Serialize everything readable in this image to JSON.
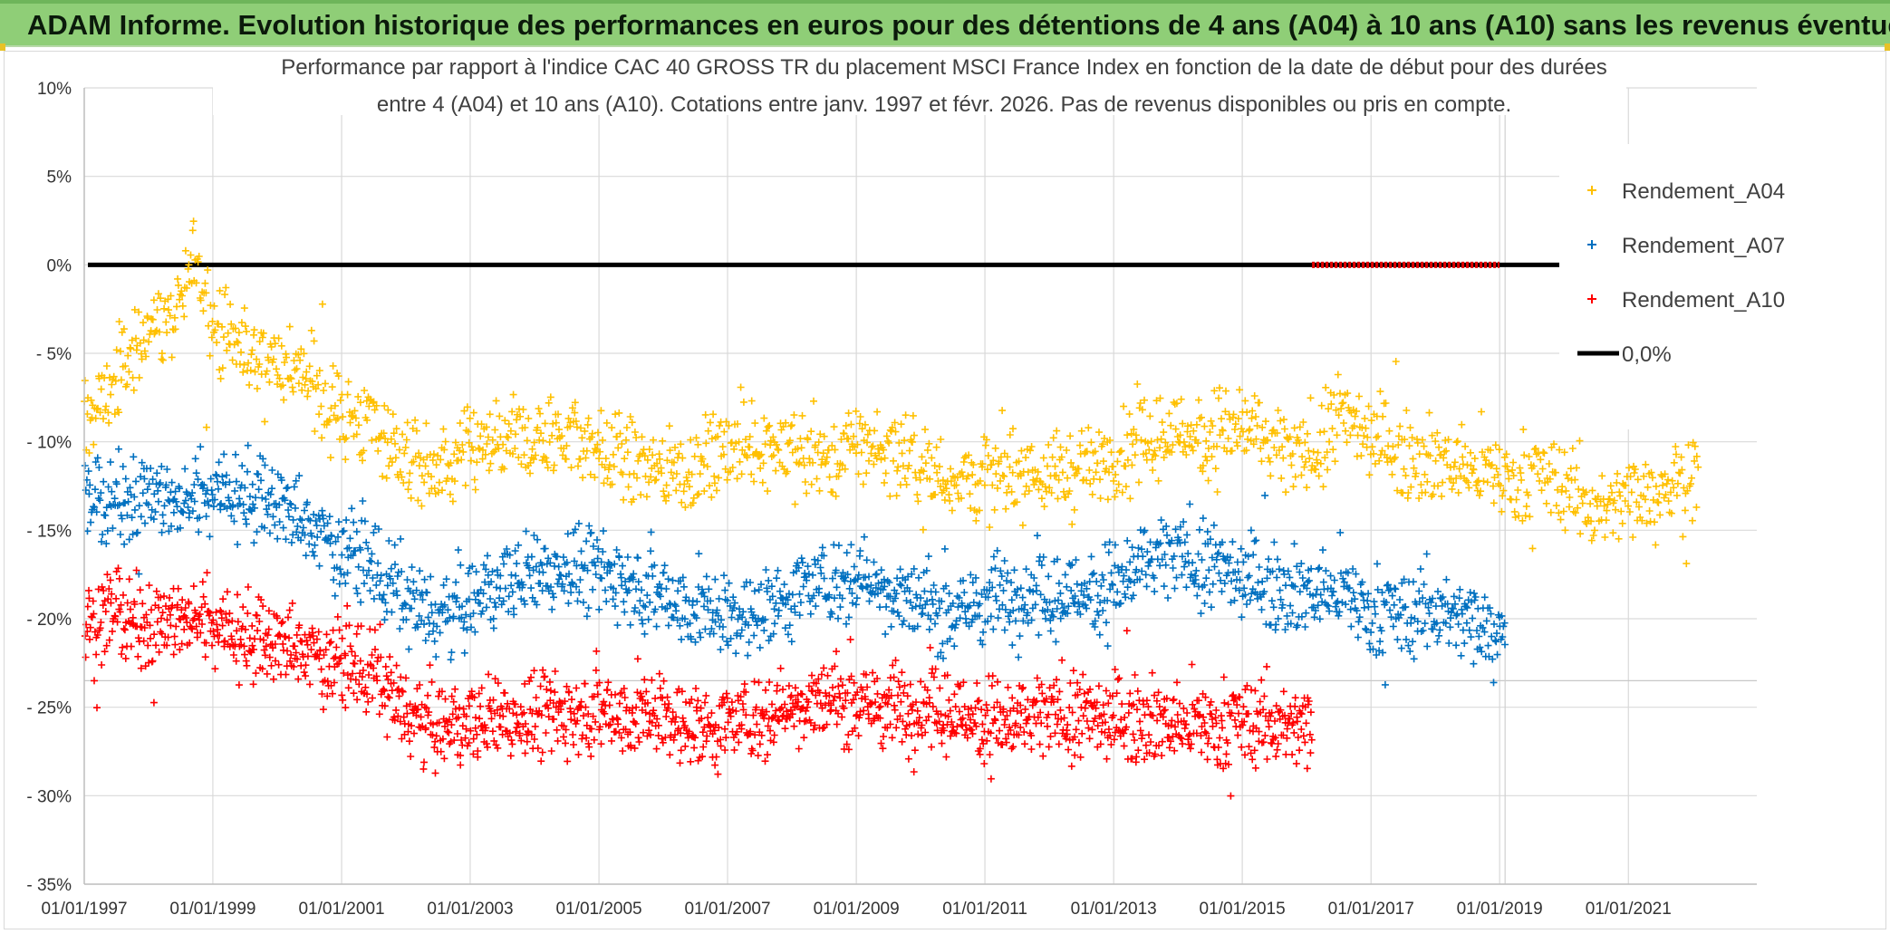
{
  "banner": {
    "title": "ADAM Informe. Evolution historique des performances en euros pour des détentions de 4 ans (A04) à 10 ans (A10) sans les revenus éventuels",
    "background": "#8fce77"
  },
  "chart_data": {
    "type": "scatter",
    "title_lines": [
      "Performance par rapport à l'indice CAC 40 GROSS TR  du placement MSCI France Index en fonction de la date de début pour des durées",
      "entre 4 (A04) et 10 ans (A10). Cotations entre janv. 1997 et févr. 2026. Pas de revenus disponibles ou pris en compte."
    ],
    "x_range": [
      "1997-01-01",
      "2022-12-31"
    ],
    "x_ticks": [
      "01/01/1997",
      "01/01/1999",
      "01/01/2001",
      "01/01/2003",
      "01/01/2005",
      "01/01/2007",
      "01/01/2009",
      "01/01/2011",
      "01/01/2013",
      "01/01/2015",
      "01/01/2017",
      "01/01/2019",
      "01/01/2021"
    ],
    "y_range": [
      -35,
      10
    ],
    "y_ticks": [
      "10%",
      "5%",
      "0%",
      "- 5%",
      "- 10%",
      "- 15%",
      "- 20%",
      "- 25%",
      "- 30%",
      "- 35%"
    ],
    "y_tick_values": [
      10,
      5,
      0,
      -5,
      -10,
      -15,
      -20,
      -25,
      -30,
      -35
    ],
    "grid": true,
    "legend_position": "top-right",
    "series": [
      {
        "name": "Rendement_A04",
        "color": "#ffc000",
        "marker": "+",
        "x_start": "1997-01-01",
        "x_end": "2022-02-01",
        "points": [
          [
            "1997-01-01",
            -9
          ],
          [
            "1997-07-01",
            -6.5
          ],
          [
            "1998-01-01",
            -3.5
          ],
          [
            "1998-07-01",
            -2.5
          ],
          [
            "1998-10-01",
            0.5
          ],
          [
            "1999-01-01",
            -3
          ],
          [
            "1999-07-01",
            -5
          ],
          [
            "2000-01-01",
            -5.5
          ],
          [
            "2000-07-01",
            -6.5
          ],
          [
            "2001-01-01",
            -8.5
          ],
          [
            "2001-07-01",
            -9
          ],
          [
            "2002-01-01",
            -11
          ],
          [
            "2002-07-01",
            -12
          ],
          [
            "2003-01-01",
            -10.5
          ],
          [
            "2003-07-01",
            -10
          ],
          [
            "2004-01-01",
            -10
          ],
          [
            "2004-07-01",
            -9.5
          ],
          [
            "2005-01-01",
            -10.5
          ],
          [
            "2005-07-01",
            -11
          ],
          [
            "2006-01-01",
            -11.5
          ],
          [
            "2006-07-01",
            -11.5
          ],
          [
            "2007-01-01",
            -10.5
          ],
          [
            "2007-07-01",
            -10
          ],
          [
            "2008-01-01",
            -10.5
          ],
          [
            "2008-07-01",
            -11
          ],
          [
            "2009-01-01",
            -10
          ],
          [
            "2009-07-01",
            -10.5
          ],
          [
            "2010-01-01",
            -11.5
          ],
          [
            "2010-07-01",
            -12
          ],
          [
            "2011-01-01",
            -12
          ],
          [
            "2011-07-01",
            -11.5
          ],
          [
            "2012-01-01",
            -12
          ],
          [
            "2012-07-01",
            -11.5
          ],
          [
            "2013-01-01",
            -11
          ],
          [
            "2013-07-01",
            -10
          ],
          [
            "2014-01-01",
            -9.5
          ],
          [
            "2014-07-01",
            -9.5
          ],
          [
            "2015-01-01",
            -9
          ],
          [
            "2015-07-01",
            -10.5
          ],
          [
            "2016-01-01",
            -11
          ],
          [
            "2016-07-01",
            -8.5
          ],
          [
            "2017-01-01",
            -9.5
          ],
          [
            "2017-07-01",
            -10.5
          ],
          [
            "2018-01-01",
            -11
          ],
          [
            "2018-07-01",
            -11.5
          ],
          [
            "2019-01-01",
            -12
          ],
          [
            "2019-07-01",
            -12
          ],
          [
            "2020-01-01",
            -12.5
          ],
          [
            "2020-07-01",
            -14
          ],
          [
            "2021-01-01",
            -13
          ],
          [
            "2021-07-01",
            -12.5
          ],
          [
            "2022-02-01",
            -12
          ]
        ]
      },
      {
        "name": "Rendement_A07",
        "color": "#0070c0",
        "marker": "+",
        "x_start": "1997-01-01",
        "x_end": "2019-02-01",
        "points": [
          [
            "1997-01-01",
            -14
          ],
          [
            "1997-07-01",
            -13.5
          ],
          [
            "1998-01-01",
            -13
          ],
          [
            "1998-07-01",
            -13.5
          ],
          [
            "1999-01-01",
            -12.5
          ],
          [
            "1999-07-01",
            -13
          ],
          [
            "2000-01-01",
            -13.5
          ],
          [
            "2000-07-01",
            -15
          ],
          [
            "2001-01-01",
            -16
          ],
          [
            "2001-07-01",
            -17
          ],
          [
            "2002-01-01",
            -19
          ],
          [
            "2002-07-01",
            -20
          ],
          [
            "2003-01-01",
            -19
          ],
          [
            "2003-07-01",
            -18
          ],
          [
            "2004-01-01",
            -17.5
          ],
          [
            "2004-07-01",
            -17
          ],
          [
            "2005-01-01",
            -17.5
          ],
          [
            "2005-07-01",
            -18
          ],
          [
            "2006-01-01",
            -18.5
          ],
          [
            "2006-07-01",
            -19.5
          ],
          [
            "2007-01-01",
            -20
          ],
          [
            "2007-07-01",
            -19.5
          ],
          [
            "2008-01-01",
            -18.5
          ],
          [
            "2008-07-01",
            -18
          ],
          [
            "2009-01-01",
            -17.5
          ],
          [
            "2009-07-01",
            -18.5
          ],
          [
            "2010-01-01",
            -19
          ],
          [
            "2010-07-01",
            -19.5
          ],
          [
            "2011-01-01",
            -19
          ],
          [
            "2011-07-01",
            -18.5
          ],
          [
            "2012-01-01",
            -19
          ],
          [
            "2012-07-01",
            -18.5
          ],
          [
            "2013-01-01",
            -18
          ],
          [
            "2013-07-01",
            -17
          ],
          [
            "2014-01-01",
            -16.5
          ],
          [
            "2014-07-01",
            -17
          ],
          [
            "2015-01-01",
            -17.5
          ],
          [
            "2015-07-01",
            -18
          ],
          [
            "2016-01-01",
            -18.5
          ],
          [
            "2016-07-01",
            -18.5
          ],
          [
            "2017-01-01",
            -19.5
          ],
          [
            "2017-07-01",
            -20
          ],
          [
            "2018-01-01",
            -19.5
          ],
          [
            "2018-07-01",
            -20
          ],
          [
            "2019-02-01",
            -20.5
          ]
        ]
      },
      {
        "name": "Rendement_A10",
        "color": "#ff0000",
        "marker": "+",
        "x_start": "1997-01-01",
        "x_end": "2016-02-01",
        "points": [
          [
            "1997-01-01",
            -20.5
          ],
          [
            "1997-07-01",
            -20
          ],
          [
            "1998-01-01",
            -20.5
          ],
          [
            "1998-07-01",
            -20
          ],
          [
            "1999-01-01",
            -20
          ],
          [
            "1999-07-01",
            -21
          ],
          [
            "2000-01-01",
            -21.5
          ],
          [
            "2000-07-01",
            -22
          ],
          [
            "2001-01-01",
            -22.5
          ],
          [
            "2001-07-01",
            -23
          ],
          [
            "2002-01-01",
            -25.5
          ],
          [
            "2002-07-01",
            -26
          ],
          [
            "2003-01-01",
            -26
          ],
          [
            "2003-07-01",
            -25.5
          ],
          [
            "2004-01-01",
            -25.5
          ],
          [
            "2004-07-01",
            -25.5
          ],
          [
            "2005-01-01",
            -25
          ],
          [
            "2005-07-01",
            -25.5
          ],
          [
            "2006-01-01",
            -25.5
          ],
          [
            "2006-07-01",
            -26
          ],
          [
            "2007-01-01",
            -26
          ],
          [
            "2007-07-01",
            -25.5
          ],
          [
            "2008-01-01",
            -25
          ],
          [
            "2008-07-01",
            -24.5
          ],
          [
            "2009-01-01",
            -24.5
          ],
          [
            "2009-07-01",
            -25
          ],
          [
            "2010-01-01",
            -25
          ],
          [
            "2010-07-01",
            -25.5
          ],
          [
            "2011-01-01",
            -25.5
          ],
          [
            "2011-07-01",
            -26
          ],
          [
            "2012-01-01",
            -25.5
          ],
          [
            "2012-07-01",
            -25.5
          ],
          [
            "2013-01-01",
            -25.5
          ],
          [
            "2013-07-01",
            -25.5
          ],
          [
            "2014-01-01",
            -26
          ],
          [
            "2014-07-01",
            -26
          ],
          [
            "2015-01-01",
            -26
          ],
          [
            "2015-07-01",
            -26
          ],
          [
            "2016-02-01",
            -26
          ]
        ]
      }
    ],
    "reference_line": {
      "name": "0,0%",
      "value": 0,
      "color": "#000000",
      "highlight_color": "#e00000",
      "highlight_range": [
        "2016-02-01",
        "2018-12-31"
      ]
    },
    "vertical_line_x": "2019-02-01",
    "noise_sd": 1.2
  }
}
